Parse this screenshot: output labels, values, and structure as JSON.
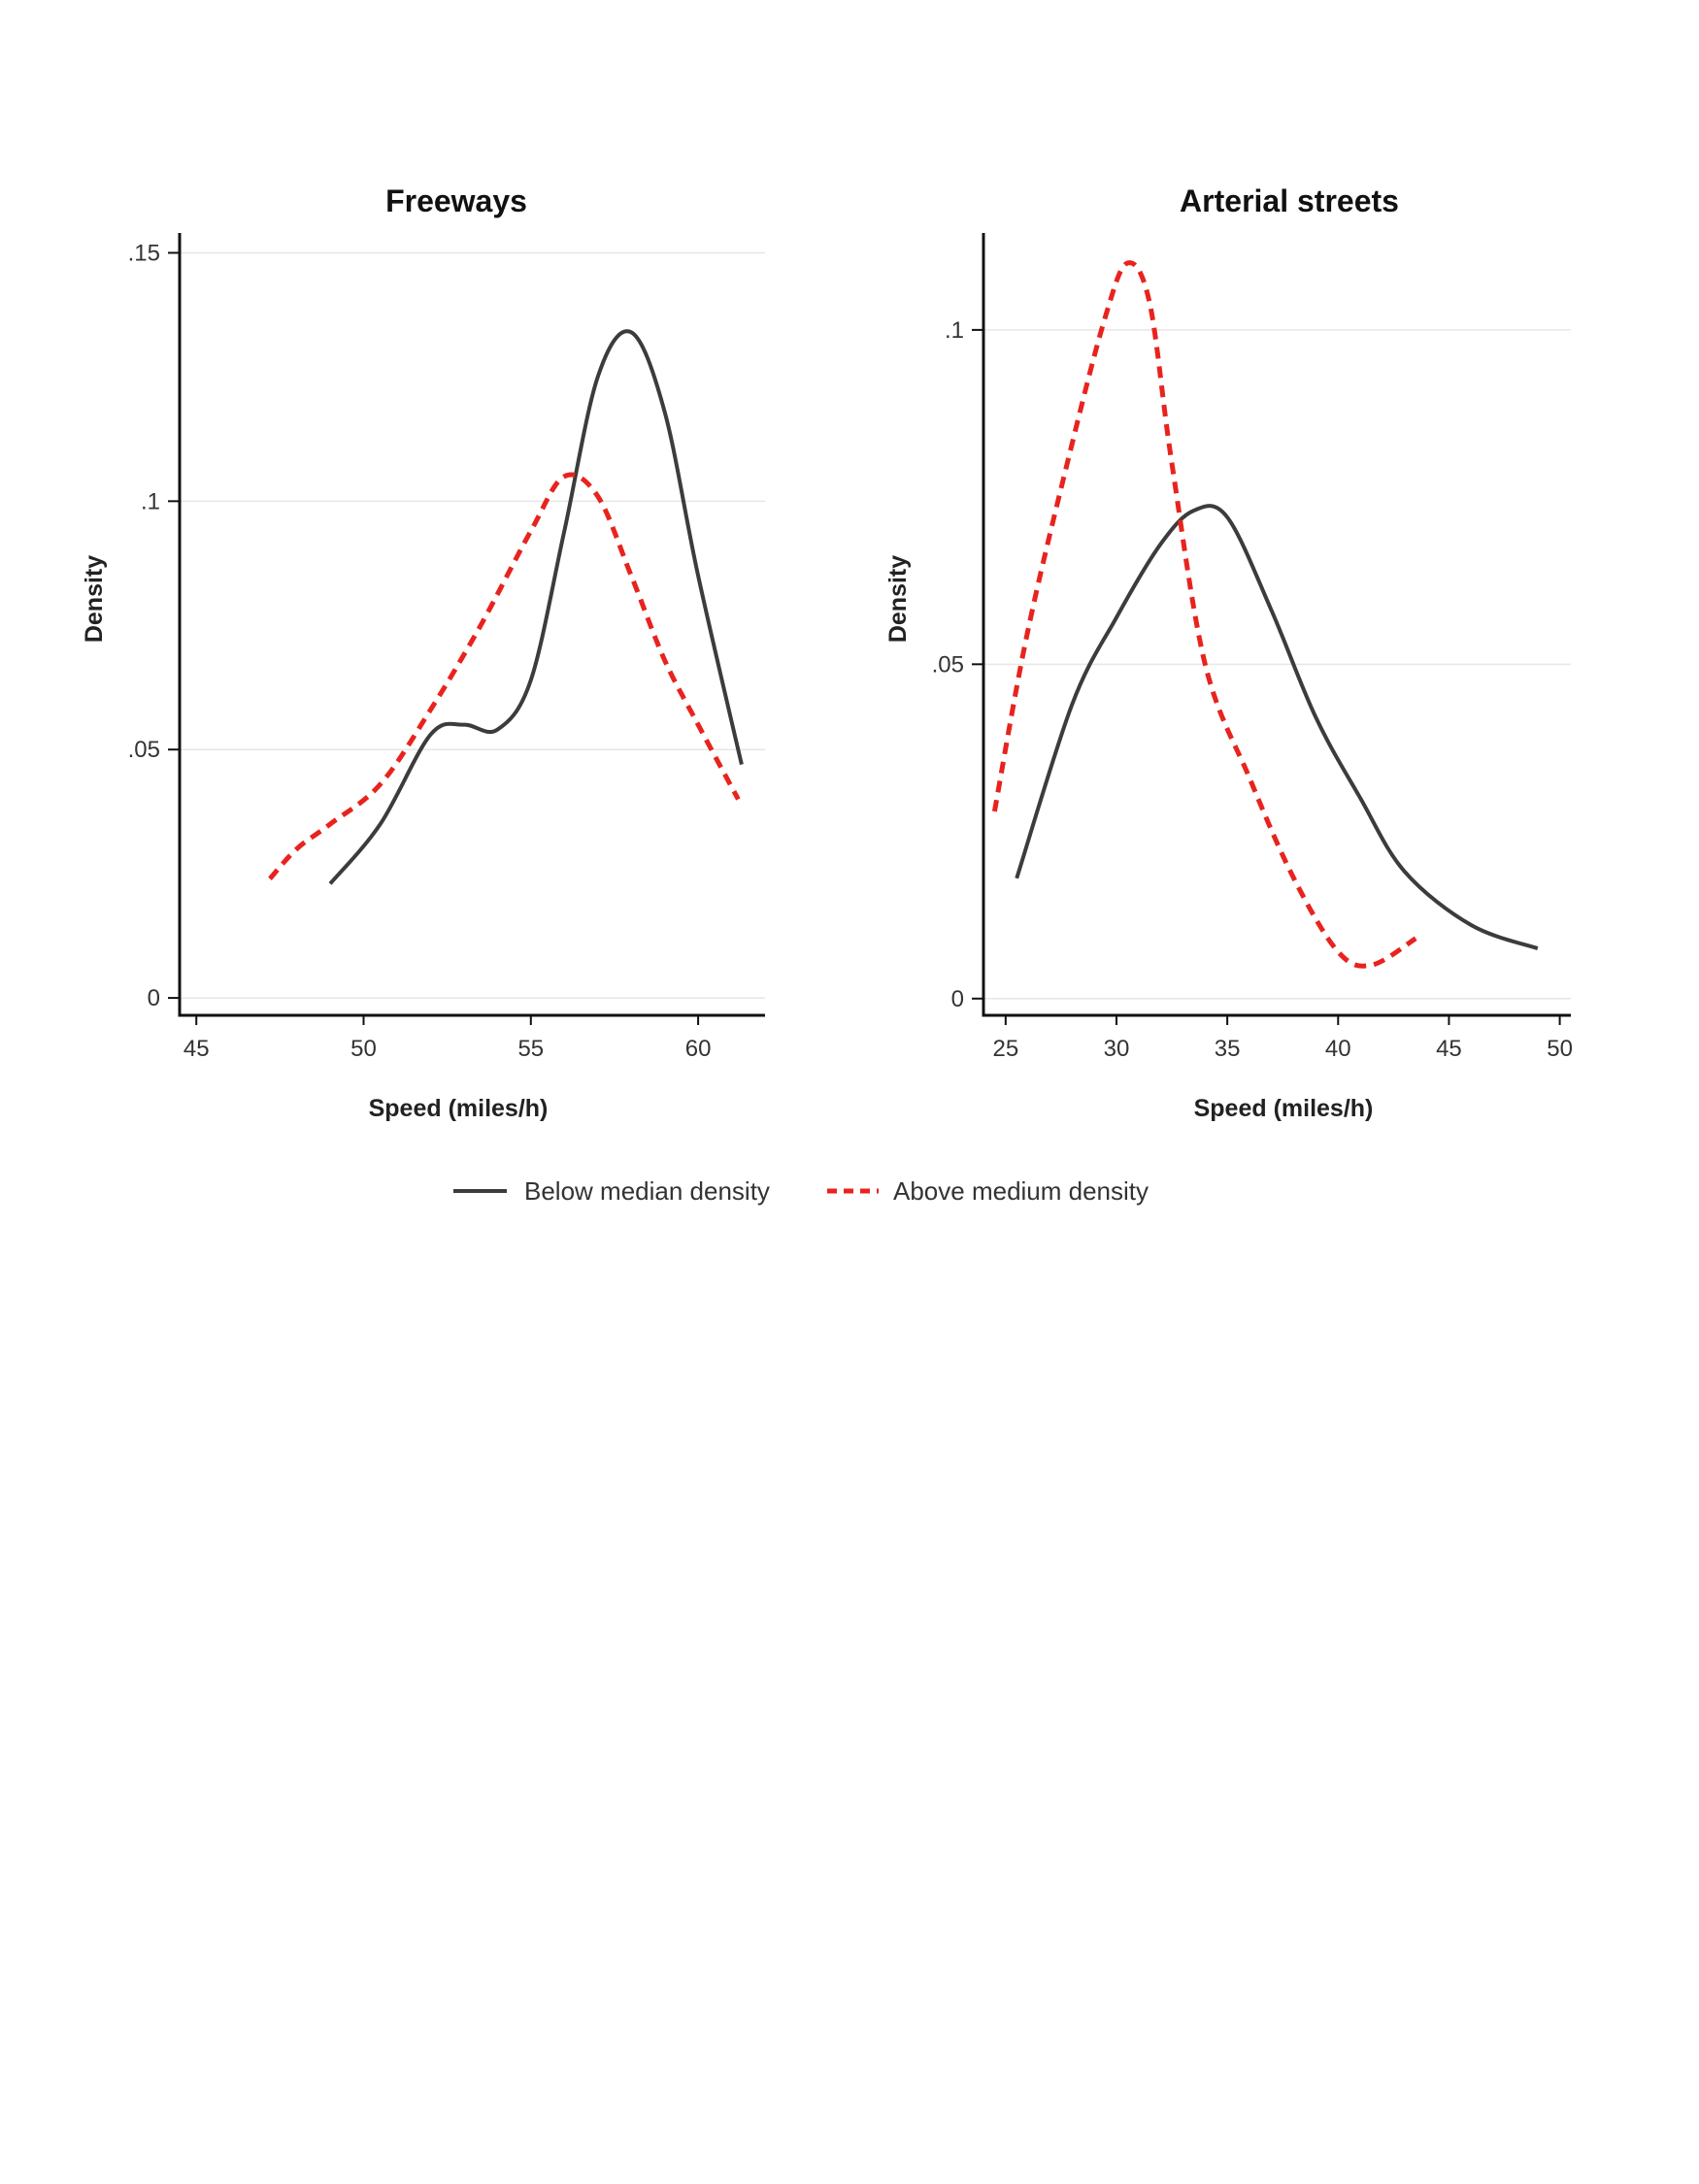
{
  "chart_data": [
    {
      "type": "line",
      "title": "Freeways",
      "xlabel": "Speed (miles/h)",
      "ylabel": "Density",
      "xlim": [
        44.5,
        62
      ],
      "ylim": [
        -0.0035,
        0.154
      ],
      "xticks": [
        45,
        50,
        55,
        60
      ],
      "xtick_labels": [
        "45",
        "50",
        "55",
        "60"
      ],
      "yticks": [
        0,
        0.05,
        0.1,
        0.15
      ],
      "ytick_labels": [
        "0",
        ".05",
        ".1",
        ".15"
      ],
      "grid": true,
      "series": [
        {
          "name": "Below median density",
          "x": [
            49,
            50.5,
            52,
            53,
            54,
            55,
            56,
            57,
            58,
            59,
            60,
            61.3
          ],
          "y": [
            0.023,
            0.035,
            0.053,
            0.055,
            0.054,
            0.064,
            0.094,
            0.125,
            0.134,
            0.118,
            0.085,
            0.047
          ]
        },
        {
          "name": "Above medium density",
          "x": [
            47.2,
            48,
            49,
            50.5,
            52,
            53.5,
            55,
            56,
            57,
            58,
            59,
            60,
            61.2
          ],
          "y": [
            0.024,
            0.03,
            0.035,
            0.043,
            0.058,
            0.075,
            0.094,
            0.105,
            0.101,
            0.085,
            0.068,
            0.055,
            0.04
          ]
        }
      ]
    },
    {
      "type": "line",
      "title": "Arterial streets",
      "xlabel": "Speed (miles/h)",
      "ylabel": "Density",
      "xlim": [
        24,
        50.5
      ],
      "ylim": [
        -0.0025,
        0.1145
      ],
      "xticks": [
        25,
        30,
        35,
        40,
        45,
        50
      ],
      "xtick_labels": [
        "25",
        "30",
        "35",
        "40",
        "45",
        "50"
      ],
      "yticks": [
        0,
        0.05,
        0.1
      ],
      "ytick_labels": [
        "0",
        ".05",
        ".1"
      ],
      "grid": true,
      "series": [
        {
          "name": "Below median density",
          "x": [
            25.5,
            28,
            30,
            32,
            33.5,
            35,
            37,
            39,
            41,
            43,
            46,
            49
          ],
          "y": [
            0.018,
            0.044,
            0.057,
            0.068,
            0.073,
            0.072,
            0.058,
            0.042,
            0.03,
            0.019,
            0.011,
            0.0075
          ]
        },
        {
          "name": "Above medium density",
          "x": [
            24.5,
            26,
            28,
            29.5,
            30.5,
            31.5,
            32.5,
            34,
            36,
            38,
            40,
            41.5,
            43.5
          ],
          "y": [
            0.028,
            0.055,
            0.083,
            0.102,
            0.11,
            0.104,
            0.08,
            0.05,
            0.033,
            0.018,
            0.007,
            0.005,
            0.009
          ]
        }
      ]
    }
  ],
  "legend": {
    "items": [
      {
        "label": "Below median density",
        "color": "#3c3c3c",
        "style": "solid"
      },
      {
        "label": "Above medium density",
        "color": "#e8231e",
        "style": "dashed"
      }
    ],
    "placement": "bottom"
  },
  "colors": {
    "below": "#3c3c3c",
    "above": "#e8231e"
  }
}
